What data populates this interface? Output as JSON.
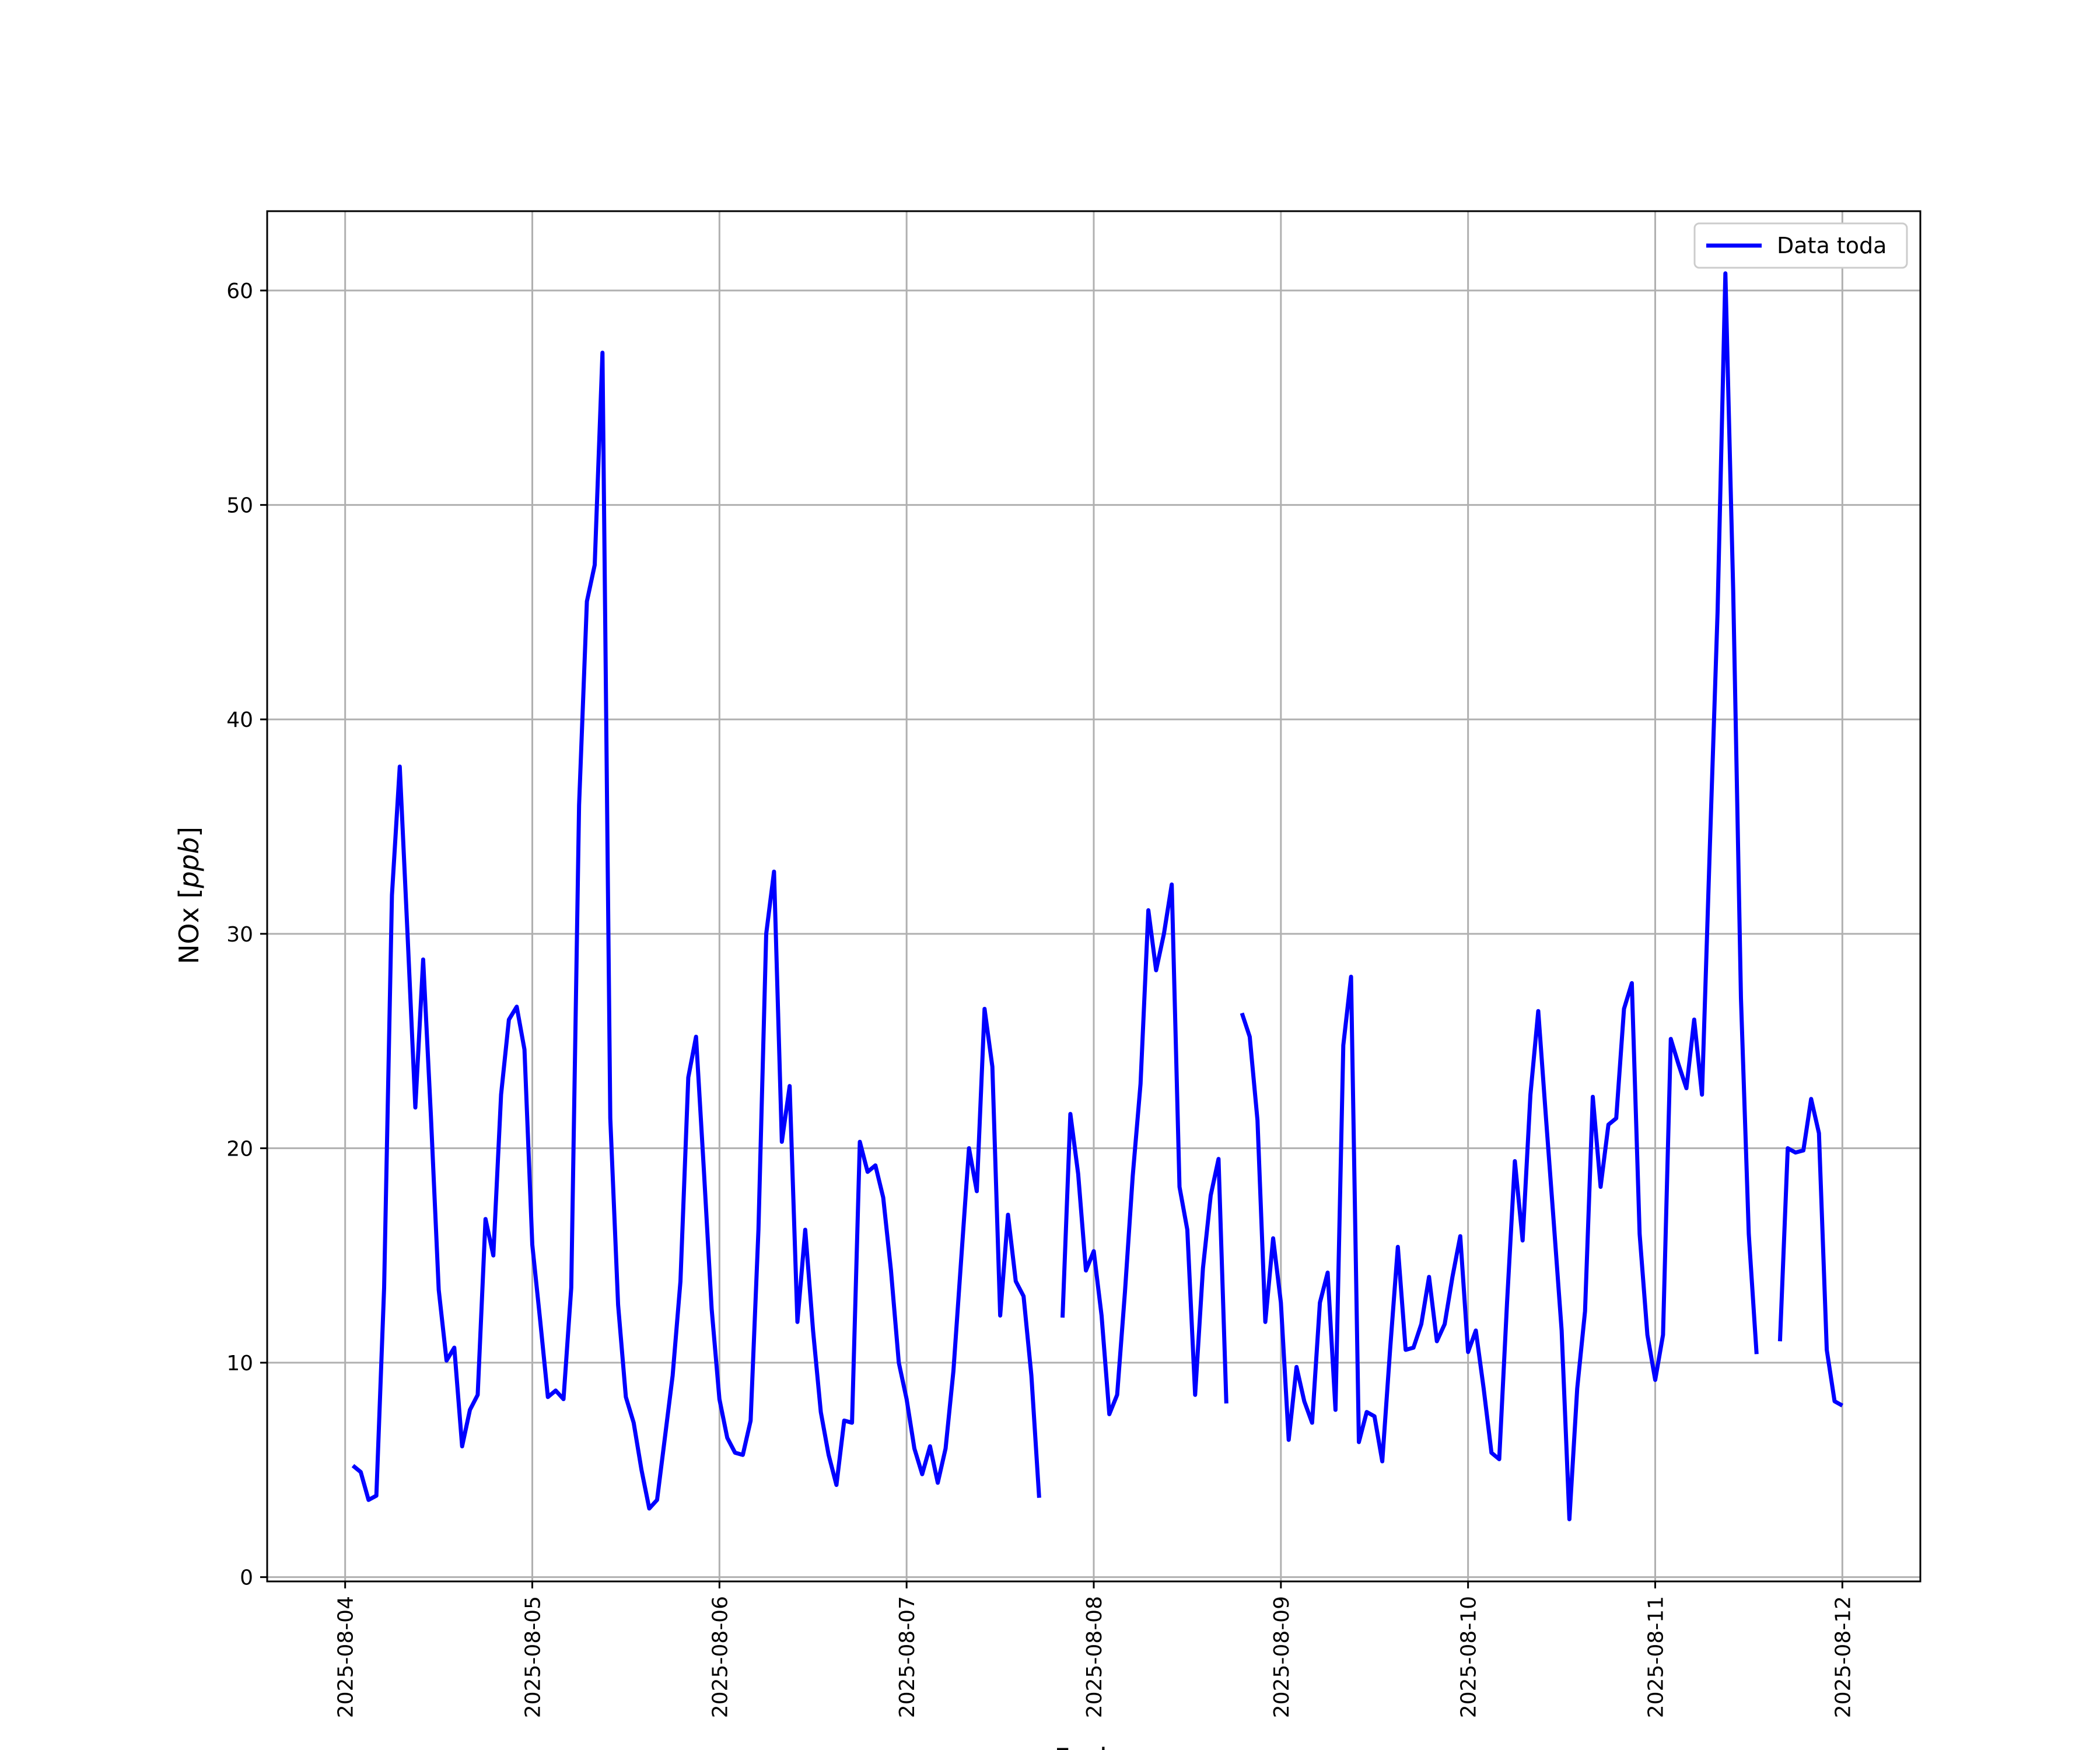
{
  "chart_data": {
    "type": "line",
    "xlabel": "Fecha",
    "ylabel": "NOx [ppb]",
    "ylabel_main": "NOx ",
    "ylabel_unit": "ppb",
    "x_ticks": [
      "2025-08-04",
      "2025-08-05",
      "2025-08-06",
      "2025-08-07",
      "2025-08-08",
      "2025-08-09",
      "2025-08-10",
      "2025-08-11",
      "2025-08-12"
    ],
    "y_ticks": [
      0,
      10,
      20,
      30,
      40,
      50,
      60
    ],
    "xlim": [
      "2025-08-03 14:00",
      "2025-08-12 10:00"
    ],
    "ylim": [
      -0.2,
      63.7
    ],
    "grid": true,
    "legend_position": "top-right",
    "colors": {
      "series": "#0000ff",
      "grid": "#b0b0b0",
      "axes": "#000000"
    },
    "series": [
      {
        "name": "Data toda",
        "note_points": "timestamps in the chart's date units; null marks gaps",
        "points": [
          [
            "2025-08-04 01:00",
            5.2
          ],
          [
            "2025-08-04 02:00",
            4.9
          ],
          [
            "2025-08-04 03:00",
            3.6
          ],
          [
            "2025-08-04 04:00",
            3.8
          ],
          [
            "2025-08-04 05:00",
            13.5
          ],
          [
            "2025-08-04 06:00",
            31.8
          ],
          [
            "2025-08-04 07:00",
            37.8
          ],
          [
            "2025-08-04 08:00",
            30.0
          ],
          [
            "2025-08-04 09:00",
            21.9
          ],
          [
            "2025-08-04 10:00",
            28.8
          ],
          [
            "2025-08-04 11:00",
            21.5
          ],
          [
            "2025-08-04 12:00",
            13.4
          ],
          [
            "2025-08-04 13:00",
            10.1
          ],
          [
            "2025-08-04 14:00",
            10.7
          ],
          [
            "2025-08-04 15:00",
            6.1
          ],
          [
            "2025-08-04 16:00",
            7.8
          ],
          [
            "2025-08-04 17:00",
            8.5
          ],
          [
            "2025-08-04 18:00",
            16.7
          ],
          [
            "2025-08-04 19:00",
            15.0
          ],
          [
            "2025-08-04 20:00",
            22.5
          ],
          [
            "2025-08-04 21:00",
            26.0
          ],
          [
            "2025-08-04 22:00",
            26.6
          ],
          [
            "2025-08-04 23:00",
            24.6
          ],
          [
            "2025-08-05 00:00",
            15.5
          ],
          [
            "2025-08-05 01:00",
            12.0
          ],
          [
            "2025-08-05 02:00",
            8.4
          ],
          [
            "2025-08-05 03:00",
            8.7
          ],
          [
            "2025-08-05 04:00",
            8.3
          ],
          [
            "2025-08-05 05:00",
            13.5
          ],
          [
            "2025-08-05 06:00",
            36.0
          ],
          [
            "2025-08-05 07:00",
            45.5
          ],
          [
            "2025-08-05 08:00",
            47.2
          ],
          [
            "2025-08-05 09:00",
            57.1
          ],
          [
            "2025-08-05 10:00",
            21.4
          ],
          [
            "2025-08-05 11:00",
            12.7
          ],
          [
            "2025-08-05 12:00",
            8.4
          ],
          [
            "2025-08-05 13:00",
            7.2
          ],
          [
            "2025-08-05 14:00",
            5.0
          ],
          [
            "2025-08-05 15:00",
            3.2
          ],
          [
            "2025-08-05 16:00",
            3.6
          ],
          [
            "2025-08-05 17:00",
            6.5
          ],
          [
            "2025-08-05 18:00",
            9.4
          ],
          [
            "2025-08-05 19:00",
            13.8
          ],
          [
            "2025-08-05 20:00",
            23.3
          ],
          [
            "2025-08-05 21:00",
            25.2
          ],
          [
            "2025-08-05 22:00",
            19.0
          ],
          [
            "2025-08-05 23:00",
            12.5
          ],
          [
            "2025-08-06 00:00",
            8.3
          ],
          [
            "2025-08-06 01:00",
            6.5
          ],
          [
            "2025-08-06 02:00",
            5.8
          ],
          [
            "2025-08-06 03:00",
            5.7
          ],
          [
            "2025-08-06 04:00",
            7.3
          ],
          [
            "2025-08-06 05:00",
            16.2
          ],
          [
            "2025-08-06 06:00",
            30.0
          ],
          [
            "2025-08-06 07:00",
            32.9
          ],
          [
            "2025-08-06 08:00",
            20.3
          ],
          [
            "2025-08-06 09:00",
            22.9
          ],
          [
            "2025-08-06 10:00",
            11.9
          ],
          [
            "2025-08-06 11:00",
            16.2
          ],
          [
            "2025-08-06 12:00",
            11.5
          ],
          [
            "2025-08-06 13:00",
            7.7
          ],
          [
            "2025-08-06 14:00",
            5.7
          ],
          [
            "2025-08-06 15:00",
            4.3
          ],
          [
            "2025-08-06 16:00",
            7.3
          ],
          [
            "2025-08-06 17:00",
            7.2
          ],
          [
            "2025-08-06 18:00",
            20.3
          ],
          [
            "2025-08-06 19:00",
            18.9
          ],
          [
            "2025-08-06 20:00",
            19.2
          ],
          [
            "2025-08-06 21:00",
            17.7
          ],
          [
            "2025-08-06 22:00",
            14.3
          ],
          [
            "2025-08-06 23:00",
            10.0
          ],
          [
            "2025-08-07 00:00",
            8.3
          ],
          [
            "2025-08-07 01:00",
            6.0
          ],
          [
            "2025-08-07 02:00",
            4.8
          ],
          [
            "2025-08-07 03:00",
            6.1
          ],
          [
            "2025-08-07 04:00",
            4.4
          ],
          [
            "2025-08-07 05:00",
            6.0
          ],
          [
            "2025-08-07 06:00",
            9.6
          ],
          [
            "2025-08-07 07:00",
            14.8
          ],
          [
            "2025-08-07 08:00",
            20.0
          ],
          [
            "2025-08-07 09:00",
            18.0
          ],
          [
            "2025-08-07 10:00",
            26.5
          ],
          [
            "2025-08-07 11:00",
            23.8
          ],
          [
            "2025-08-07 12:00",
            12.2
          ],
          [
            "2025-08-07 13:00",
            16.9
          ],
          [
            "2025-08-07 14:00",
            13.8
          ],
          [
            "2025-08-07 15:00",
            13.1
          ],
          [
            "2025-08-07 16:00",
            9.4
          ],
          [
            "2025-08-07 17:00",
            3.7
          ],
          [
            "2025-08-07 18:00",
            null
          ],
          [
            "2025-08-07 19:00",
            null
          ],
          [
            "2025-08-07 20:00",
            12.1
          ],
          [
            "2025-08-07 21:00",
            21.6
          ],
          [
            "2025-08-07 22:00",
            18.8
          ],
          [
            "2025-08-07 23:00",
            14.3
          ],
          [
            "2025-08-08 00:00",
            15.2
          ],
          [
            "2025-08-08 01:00",
            12.2
          ],
          [
            "2025-08-08 02:00",
            7.6
          ],
          [
            "2025-08-08 03:00",
            8.5
          ],
          [
            "2025-08-08 04:00",
            13.3
          ],
          [
            "2025-08-08 05:00",
            18.7
          ],
          [
            "2025-08-08 06:00",
            23.0
          ],
          [
            "2025-08-08 07:00",
            31.1
          ],
          [
            "2025-08-08 08:00",
            28.3
          ],
          [
            "2025-08-08 09:00",
            30.0
          ],
          [
            "2025-08-08 10:00",
            32.3
          ],
          [
            "2025-08-08 11:00",
            18.2
          ],
          [
            "2025-08-08 12:00",
            16.2
          ],
          [
            "2025-08-08 13:00",
            8.5
          ],
          [
            "2025-08-08 14:00",
            14.4
          ],
          [
            "2025-08-08 15:00",
            17.8
          ],
          [
            "2025-08-08 16:00",
            19.5
          ],
          [
            "2025-08-08 17:00",
            8.1
          ],
          [
            "2025-08-08 18:00",
            null
          ],
          [
            "2025-08-08 19:00",
            26.3
          ],
          [
            "2025-08-08 20:00",
            25.2
          ],
          [
            "2025-08-08 21:00",
            21.3
          ],
          [
            "2025-08-08 22:00",
            11.9
          ],
          [
            "2025-08-08 23:00",
            15.8
          ],
          [
            "2025-08-09 00:00",
            12.8
          ],
          [
            "2025-08-09 01:00",
            6.4
          ],
          [
            "2025-08-09 02:00",
            9.8
          ],
          [
            "2025-08-09 03:00",
            8.2
          ],
          [
            "2025-08-09 04:00",
            7.2
          ],
          [
            "2025-08-09 05:00",
            12.8
          ],
          [
            "2025-08-09 06:00",
            14.2
          ],
          [
            "2025-08-09 07:00",
            7.8
          ],
          [
            "2025-08-09 08:00",
            24.8
          ],
          [
            "2025-08-09 09:00",
            28.0
          ],
          [
            "2025-08-09 10:00",
            6.3
          ],
          [
            "2025-08-09 11:00",
            7.7
          ],
          [
            "2025-08-09 12:00",
            7.5
          ],
          [
            "2025-08-09 13:00",
            5.4
          ],
          [
            "2025-08-09 14:00",
            10.6
          ],
          [
            "2025-08-09 15:00",
            15.4
          ],
          [
            "2025-08-09 16:00",
            10.6
          ],
          [
            "2025-08-09 17:00",
            10.7
          ],
          [
            "2025-08-09 18:00",
            11.8
          ],
          [
            "2025-08-09 19:00",
            14.0
          ],
          [
            "2025-08-09 20:00",
            11.0
          ],
          [
            "2025-08-09 21:00",
            11.8
          ],
          [
            "2025-08-09 22:00",
            14.0
          ],
          [
            "2025-08-09 23:00",
            15.9
          ],
          [
            "2025-08-10 00:00",
            10.5
          ],
          [
            "2025-08-10 01:00",
            11.5
          ],
          [
            "2025-08-10 02:00",
            8.8
          ],
          [
            "2025-08-10 03:00",
            5.8
          ],
          [
            "2025-08-10 04:00",
            5.5
          ],
          [
            "2025-08-10 05:00",
            12.8
          ],
          [
            "2025-08-10 06:00",
            19.4
          ],
          [
            "2025-08-10 07:00",
            15.7
          ],
          [
            "2025-08-10 08:00",
            22.5
          ],
          [
            "2025-08-10 09:00",
            26.4
          ],
          [
            "2025-08-10 10:00",
            21.4
          ],
          [
            "2025-08-10 11:00",
            16.5
          ],
          [
            "2025-08-10 12:00",
            11.5
          ],
          [
            "2025-08-10 13:00",
            2.7
          ],
          [
            "2025-08-10 14:00",
            8.8
          ],
          [
            "2025-08-10 15:00",
            12.4
          ],
          [
            "2025-08-10 16:00",
            22.4
          ],
          [
            "2025-08-10 17:00",
            18.2
          ],
          [
            "2025-08-10 18:00",
            21.1
          ],
          [
            "2025-08-10 19:00",
            21.4
          ],
          [
            "2025-08-10 20:00",
            26.5
          ],
          [
            "2025-08-10 21:00",
            27.7
          ],
          [
            "2025-08-10 22:00",
            16.0
          ],
          [
            "2025-08-10 23:00",
            11.3
          ],
          [
            "2025-08-11 00:00",
            9.2
          ],
          [
            "2025-08-11 01:00",
            11.3
          ],
          [
            "2025-08-11 02:00",
            25.1
          ],
          [
            "2025-08-11 03:00",
            23.9
          ],
          [
            "2025-08-11 04:00",
            22.8
          ],
          [
            "2025-08-11 05:00",
            26.0
          ],
          [
            "2025-08-11 06:00",
            22.5
          ],
          [
            "2025-08-11 07:00",
            34.0
          ],
          [
            "2025-08-11 08:00",
            45.0
          ],
          [
            "2025-08-11 09:00",
            60.8
          ],
          [
            "2025-08-11 10:00",
            46.0
          ],
          [
            "2025-08-11 11:00",
            27.0
          ],
          [
            "2025-08-11 12:00",
            16.0
          ],
          [
            "2025-08-11 13:00",
            10.4
          ],
          [
            "2025-08-11 14:00",
            null
          ],
          [
            "2025-08-11 15:00",
            null
          ],
          [
            "2025-08-11 16:00",
            11.0
          ],
          [
            "2025-08-11 17:00",
            20.0
          ],
          [
            "2025-08-11 18:00",
            19.8
          ],
          [
            "2025-08-11 19:00",
            19.9
          ],
          [
            "2025-08-11 20:00",
            22.3
          ],
          [
            "2025-08-11 21:00",
            20.7
          ],
          [
            "2025-08-11 22:00",
            10.6
          ],
          [
            "2025-08-11 23:00",
            8.2
          ],
          [
            "2025-08-12 00:00",
            8.0
          ]
        ]
      }
    ]
  }
}
